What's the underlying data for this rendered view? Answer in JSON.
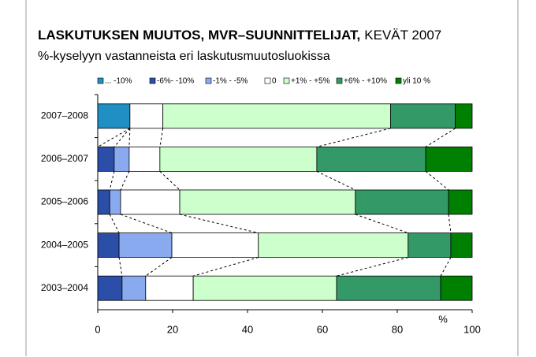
{
  "chart_data": {
    "type": "stacked_barh",
    "title": "LASKUTUKSEN MUUTOS, MVR–SUUNNITTELIJAT,",
    "title_date": "KEVÄT 2007",
    "subtitle": "%-kyselyyn vastanneista eri laskutusmuutosluokissa",
    "x_label": "%",
    "categories": [
      "2007–2008",
      "2006–2007",
      "2005–2006",
      "2004–2005",
      "2003–2004"
    ],
    "series": [
      {
        "name": "... -10%",
        "color": "#1f8fc4",
        "values": [
          8.6,
          0,
          0,
          0,
          0
        ]
      },
      {
        "name": "-6%- -10%",
        "color": "#2b4fa8",
        "values": [
          0,
          4.4,
          3.2,
          5.7,
          6.5
        ]
      },
      {
        "name": "-1% - -5%",
        "color": "#8aaaf0",
        "values": [
          0,
          4.0,
          2.9,
          14.1,
          6.3
        ]
      },
      {
        "name": "0",
        "color": "#ffffff",
        "values": [
          8.8,
          8.2,
          15.8,
          23.1,
          12.7
        ]
      },
      {
        "name": "+1% - +5%",
        "color": "#ccffcc",
        "values": [
          60.8,
          41.9,
          46.9,
          40.0,
          38.3
        ]
      },
      {
        "name": "+6%  - +10%",
        "color": "#339966",
        "values": [
          17.3,
          29.1,
          24.9,
          11.4,
          27.8
        ]
      },
      {
        "name": "yli 10 %",
        "color": "#008000",
        "values": [
          4.5,
          12.4,
          6.3,
          5.7,
          8.4
        ]
      }
    ],
    "xlim": [
      0,
      100
    ],
    "xticks": [
      0,
      20,
      40,
      60,
      80,
      100
    ],
    "series_lines": true
  }
}
